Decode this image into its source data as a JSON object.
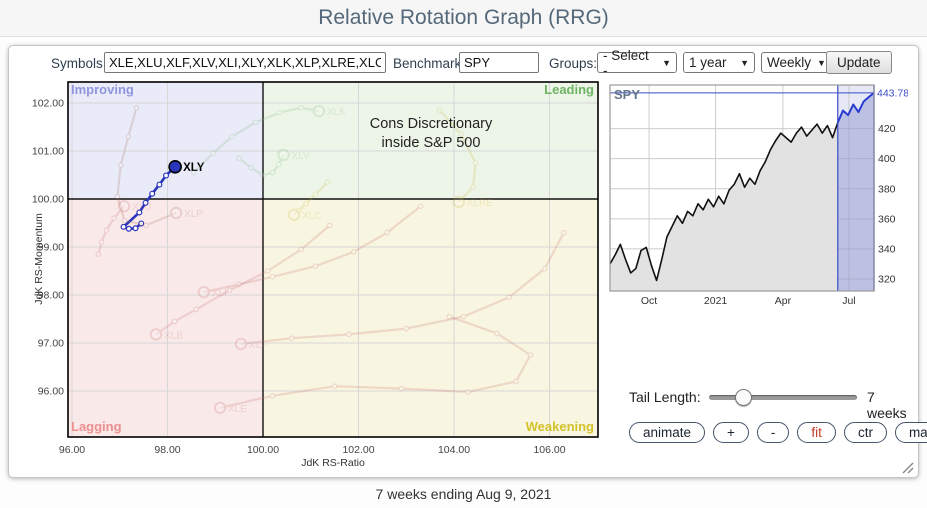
{
  "header": {
    "title": "Relative Rotation Graph (RRG)"
  },
  "toolbar": {
    "symbols_label": "Symbols:",
    "symbols_value": "XLE,XLU,XLF,XLV,XLI,XLY,XLK,XLP,XLRE,XLC,XLB",
    "benchmark_label": "Benchmark:",
    "benchmark_value": "SPY",
    "groups_label": "Groups:",
    "groups_value": "- Select -",
    "period_value": "1 year",
    "frequency_value": "Weekly",
    "update_label": "Update"
  },
  "controls": {
    "tail_length_label": "Tail Length:",
    "tail_length_value": "7 weeks",
    "buttons": [
      "animate",
      "+",
      "-",
      "fit",
      "ctr",
      "max"
    ]
  },
  "footer": {
    "caption": "7 weeks ending Aug 9, 2021"
  },
  "chart_data": [
    {
      "type": "scatter",
      "name": "rrg",
      "xlabel": "JdK RS-Ratio",
      "ylabel": "JdK RS-Momentum",
      "xticks": [
        96,
        98,
        100,
        102,
        104,
        106
      ],
      "yticks": [
        96,
        97,
        98,
        99,
        100,
        101,
        102
      ],
      "xlim": [
        95.92,
        107.02
      ],
      "ylim": [
        95.04,
        102.44
      ],
      "center": [
        100,
        100
      ],
      "annotation": [
        "Cons Discretionary",
        "inside S&P 500"
      ],
      "quadrants": [
        {
          "label": "Improving",
          "bg": "#eaebf8",
          "label_color": "#8f96dd",
          "pos": "top-left"
        },
        {
          "label": "Leading",
          "bg": "#edf5e8",
          "label_color": "#6fb464",
          "pos": "top-right"
        },
        {
          "label": "Lagging",
          "bg": "#f9e9e9",
          "label_color": "#ec8f8f",
          "pos": "bottom-left"
        },
        {
          "label": "Weakening",
          "bg": "#f8f5e0",
          "label_color": "#d3c22c",
          "pos": "bottom-right"
        }
      ],
      "series": [
        {
          "name": "XLY",
          "color": "#2a35bb",
          "highlight": true,
          "points": [
            [
              97.45,
              99.49
            ],
            [
              97.33,
              99.39
            ],
            [
              97.19,
              99.38
            ],
            [
              97.08,
              99.42
            ],
            [
              97.41,
              99.72
            ],
            [
              97.54,
              99.92
            ],
            [
              97.68,
              100.11
            ],
            [
              97.83,
              100.3
            ],
            [
              97.97,
              100.49
            ],
            [
              98.16,
              100.67
            ]
          ]
        },
        {
          "name": "XLK",
          "color": "#7db87d",
          "highlight": false,
          "points": [
            [
              98.55,
              100.55
            ],
            [
              98.95,
              100.95
            ],
            [
              99.35,
              101.3
            ],
            [
              99.85,
              101.6
            ],
            [
              100.35,
              101.8
            ],
            [
              100.8,
              101.9
            ],
            [
              101.17,
              101.83
            ]
          ]
        },
        {
          "name": "XLV",
          "color": "#7db87d",
          "highlight": false,
          "points": [
            [
              99.5,
              100.85
            ],
            [
              99.75,
              100.65
            ],
            [
              100.0,
              100.5
            ],
            [
              100.2,
              100.55
            ],
            [
              100.33,
              100.72
            ],
            [
              100.43,
              100.92
            ]
          ]
        },
        {
          "name": "XLU",
          "color": "#c96f6f",
          "highlight": false,
          "points": [
            [
              96.55,
              98.85
            ],
            [
              96.62,
              99.1
            ],
            [
              96.72,
              99.35
            ],
            [
              96.88,
              99.6
            ],
            [
              97.09,
              99.85
            ]
          ]
        },
        {
          "name": "XLP",
          "color": "#aa7163",
          "highlight": false,
          "points": [
            [
              97.35,
              101.9
            ],
            [
              97.18,
              101.3
            ],
            [
              97.02,
              100.7
            ],
            [
              96.95,
              100.05
            ],
            [
              97.1,
              99.55
            ],
            [
              97.55,
              99.45
            ],
            [
              98.18,
              99.71
            ]
          ]
        },
        {
          "name": "XLC",
          "color": "#c8b73e",
          "highlight": false,
          "points": [
            [
              101.35,
              100.35
            ],
            [
              101.1,
              100.1
            ],
            [
              100.9,
              99.9
            ],
            [
              100.75,
              99.76
            ],
            [
              100.65,
              99.67
            ]
          ]
        },
        {
          "name": "XLRE",
          "color": "#c8b73e",
          "highlight": false,
          "points": [
            [
              103.7,
              101.85
            ],
            [
              104.15,
              101.35
            ],
            [
              104.45,
              100.75
            ],
            [
              104.4,
              100.25
            ],
            [
              104.1,
              99.94
            ]
          ]
        },
        {
          "name": "XLI",
          "color": "#c96f6f",
          "highlight": false,
          "points": [
            [
              103.3,
              99.85
            ],
            [
              102.6,
              99.3
            ],
            [
              101.9,
              98.9
            ],
            [
              101.1,
              98.6
            ],
            [
              100.2,
              98.38
            ],
            [
              99.5,
              98.22
            ],
            [
              98.76,
              98.06
            ]
          ]
        },
        {
          "name": "XLB",
          "color": "#c96f6f",
          "highlight": false,
          "points": [
            [
              101.4,
              99.45
            ],
            [
              100.8,
              98.95
            ],
            [
              100.1,
              98.5
            ],
            [
              99.3,
              98.1
            ],
            [
              98.6,
              97.7
            ],
            [
              98.15,
              97.45
            ],
            [
              97.76,
              97.18
            ]
          ]
        },
        {
          "name": "XLF",
          "color": "#c96f6f",
          "highlight": false,
          "points": [
            [
              106.3,
              99.3
            ],
            [
              105.9,
              98.55
            ],
            [
              105.15,
              97.95
            ],
            [
              104.2,
              97.55
            ],
            [
              103.0,
              97.3
            ],
            [
              101.8,
              97.18
            ],
            [
              100.6,
              97.1
            ],
            [
              99.54,
              96.98
            ]
          ]
        },
        {
          "name": "XLE",
          "color": "#c96f6f",
          "highlight": false,
          "points": [
            [
              103.9,
              97.55
            ],
            [
              104.9,
              97.2
            ],
            [
              105.6,
              96.75
            ],
            [
              105.3,
              96.2
            ],
            [
              104.3,
              95.98
            ],
            [
              102.9,
              96.05
            ],
            [
              101.5,
              96.1
            ],
            [
              100.2,
              95.9
            ],
            [
              99.1,
              95.65
            ]
          ]
        }
      ]
    },
    {
      "type": "area",
      "name": "spy-price",
      "symbol": "SPY",
      "last_price": "443.78",
      "ylim": [
        312,
        449
      ],
      "yticks": [
        320,
        340,
        360,
        380,
        400,
        420
      ],
      "xtick_labels": [
        "Oct",
        "2021",
        "Apr",
        "Jul"
      ],
      "xtick_pos": [
        0.148,
        0.4,
        0.655,
        0.905
      ],
      "highlight_start_index": 44,
      "values": [
        330,
        336,
        343,
        333,
        324,
        327,
        339,
        341,
        329,
        319,
        333,
        348,
        355,
        362,
        357,
        365,
        362,
        370,
        366,
        373,
        368,
        375,
        370,
        379,
        383,
        390,
        381,
        387,
        383,
        392,
        398,
        406,
        412,
        417,
        414,
        411,
        417,
        421,
        415,
        419,
        423,
        417,
        422,
        414,
        424,
        432,
        429,
        436,
        431,
        438,
        441,
        443.78
      ]
    }
  ]
}
